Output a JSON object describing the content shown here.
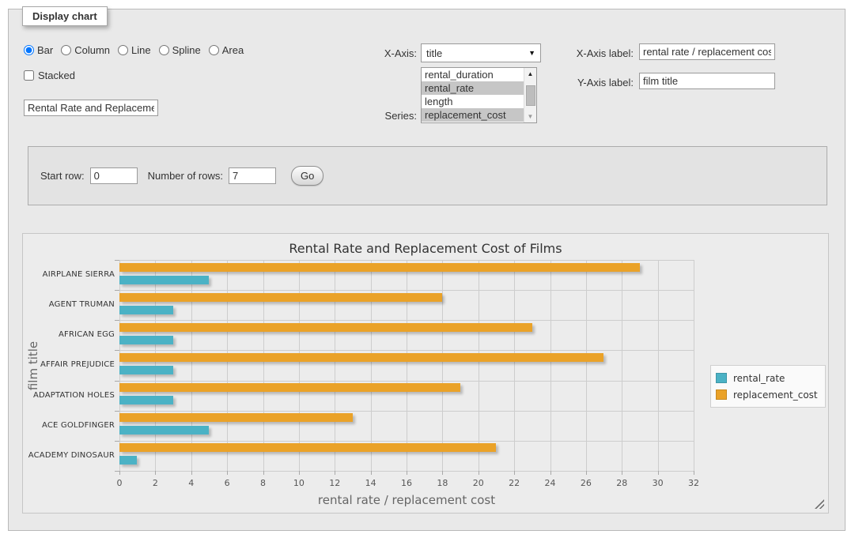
{
  "panel": {
    "tab_label": "Display chart"
  },
  "controls": {
    "chart_types": [
      {
        "label": "Bar",
        "checked": true
      },
      {
        "label": "Column",
        "checked": false
      },
      {
        "label": "Line",
        "checked": false
      },
      {
        "label": "Spline",
        "checked": false
      },
      {
        "label": "Area",
        "checked": false
      }
    ],
    "stacked_label": "Stacked",
    "stacked_checked": false,
    "chart_title_value": "Rental Rate and Replacement Cost of Films",
    "x_axis_label": "X-Axis:",
    "x_axis_selected": "title",
    "series_label": "Series:",
    "series_options": [
      {
        "label": "rental_duration",
        "selected": false
      },
      {
        "label": "rental_rate",
        "selected": true
      },
      {
        "label": "length",
        "selected": false
      },
      {
        "label": "replacement_cost",
        "selected": true
      }
    ],
    "x_axis_label_label": "X-Axis label:",
    "x_axis_label_value": "rental rate / replacement cost",
    "y_axis_label_label": "Y-Axis label:",
    "y_axis_label_value": "film title"
  },
  "row_controls": {
    "start_row_label": "Start row:",
    "start_row_value": "0",
    "num_rows_label": "Number of rows:",
    "num_rows_value": "7",
    "go_label": "Go"
  },
  "chart_data": {
    "type": "bar",
    "orientation": "horizontal",
    "title": "Rental Rate and Replacement Cost of Films",
    "categories": [
      "AIRPLANE SIERRA",
      "AGENT TRUMAN",
      "AFRICAN EGG",
      "AFFAIR PREJUDICE",
      "ADAPTATION HOLES",
      "ACE GOLDFINGER",
      "ACADEMY DINOSAUR"
    ],
    "series": [
      {
        "name": "rental_rate",
        "color": "#4bb2c5",
        "values": [
          4.99,
          2.99,
          2.99,
          2.99,
          2.99,
          4.99,
          0.99
        ]
      },
      {
        "name": "replacement_cost",
        "color": "#eaa228",
        "values": [
          28.99,
          17.99,
          22.99,
          26.99,
          18.99,
          12.99,
          20.99
        ]
      }
    ],
    "xlabel": "rental rate / replacement cost",
    "ylabel": "film title",
    "xlim": [
      0,
      32
    ],
    "xtick_step": 2,
    "grid": true,
    "legend_position": "right",
    "colors": {
      "grid_line": "#cdcdcd",
      "background": "#ececec"
    }
  }
}
